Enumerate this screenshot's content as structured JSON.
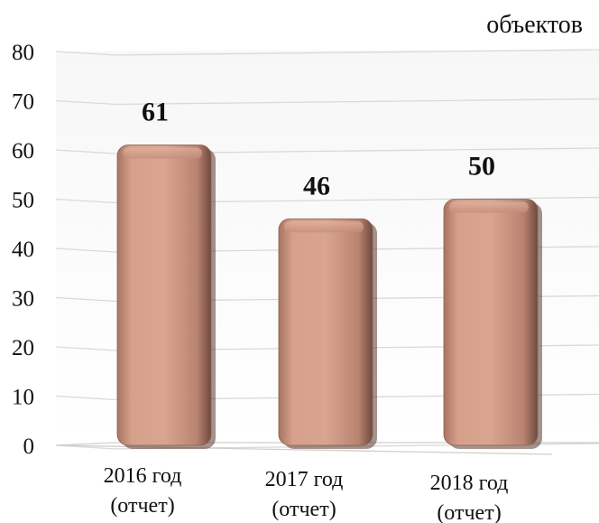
{
  "chart_data": {
    "type": "bar",
    "unit_label": "объектов",
    "categories": [
      [
        "2016 год",
        "(отчет)"
      ],
      [
        "2017 год",
        "(отчет)"
      ],
      [
        "2018 год",
        "(отчет)"
      ]
    ],
    "values": [
      61,
      46,
      50
    ],
    "data_labels": [
      "61",
      "46",
      "50"
    ],
    "yticks": [
      "0",
      "10",
      "20",
      "30",
      "40",
      "50",
      "60",
      "70",
      "80"
    ],
    "ylim": [
      0,
      80
    ],
    "grid": true,
    "bar_color": "#c98f7a",
    "legend": "none"
  }
}
